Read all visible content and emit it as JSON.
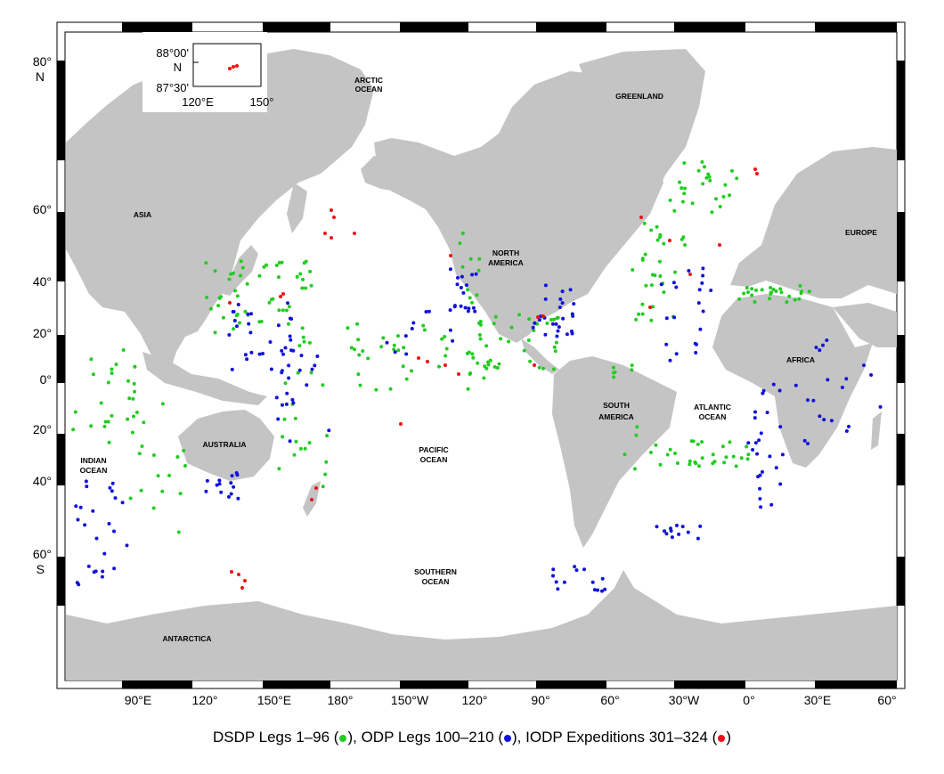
{
  "colors": {
    "land": "#c4c4c4",
    "ocean": "#ffffff",
    "dsdp": "#22cc22",
    "odp": "#1111dd",
    "iodp": "#ee1111"
  },
  "top_ticks": [
    "90°E",
    "120°",
    "150°E",
    "180°",
    "150°W",
    "120°",
    "90°",
    "60°",
    "30°W",
    "0°",
    "30°E",
    "60°"
  ],
  "left_ticks": {
    "n80": "80°",
    "n80b": "N",
    "l60": "60°",
    "l40": "40°",
    "l20": "20°",
    "l0": "0°",
    "s20": "20°",
    "s40": "40°",
    "s60": "60°",
    "s60b": "S"
  },
  "regions": {
    "arctic1": "ARCTIC",
    "arctic2": "OCEAN",
    "greenland": "GREENLAND",
    "asia": "ASIA",
    "europe": "EUROPE",
    "na1": "NORTH",
    "na2": "AMERICA",
    "africa": "AFRICA",
    "sa1": "SOUTH",
    "sa2": "AMERICA",
    "atl1": "ATLANTIC",
    "atl2": "OCEAN",
    "pac1": "PACIFIC",
    "pac2": "OCEAN",
    "ind1": "INDIAN",
    "ind2": "OCEAN",
    "australia": "AUSTRALIA",
    "so1": "SOUTHERN",
    "so2": "OCEAN",
    "antarctica": "ANTARCTICA"
  },
  "inset": {
    "lat_top": "88°00'",
    "n": "N",
    "lat_bottom": "87°30'",
    "lon_left": "120°E",
    "lon_right": "150°"
  },
  "legend": {
    "dsdp": "DSDP Legs 1–96",
    "odp": "ODP Legs 100–210",
    "iodp": "IODP Expeditions 301–324",
    "open": "(",
    "close_comma": "),",
    "close": ")"
  }
}
